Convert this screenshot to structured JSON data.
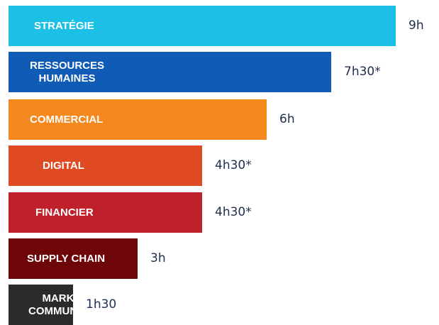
{
  "chart_data": {
    "type": "bar",
    "orientation": "horizontal",
    "unit": "hours",
    "categories": [
      "STRATÉGIE",
      "RESSOURCES\nHUMAINES",
      "COMMERCIAL",
      "DIGITAL",
      "FINANCIER",
      "SUPPLY CHAIN",
      "MARKETING\nCOMMUNICATION"
    ],
    "values": [
      9,
      7.5,
      6,
      4.5,
      4.5,
      3,
      1.5
    ],
    "value_labels": [
      "9h",
      "7h30*",
      "6h",
      "4h30*",
      "4h30*",
      "3h",
      "1h30"
    ],
    "colors": [
      "#1cc0e6",
      "#0f5bb5",
      "#f5881f",
      "#e04a22",
      "#c0202a",
      "#6e0609",
      "#2b2b2b"
    ],
    "axis_visible": false,
    "grid": false,
    "legend": "none"
  }
}
